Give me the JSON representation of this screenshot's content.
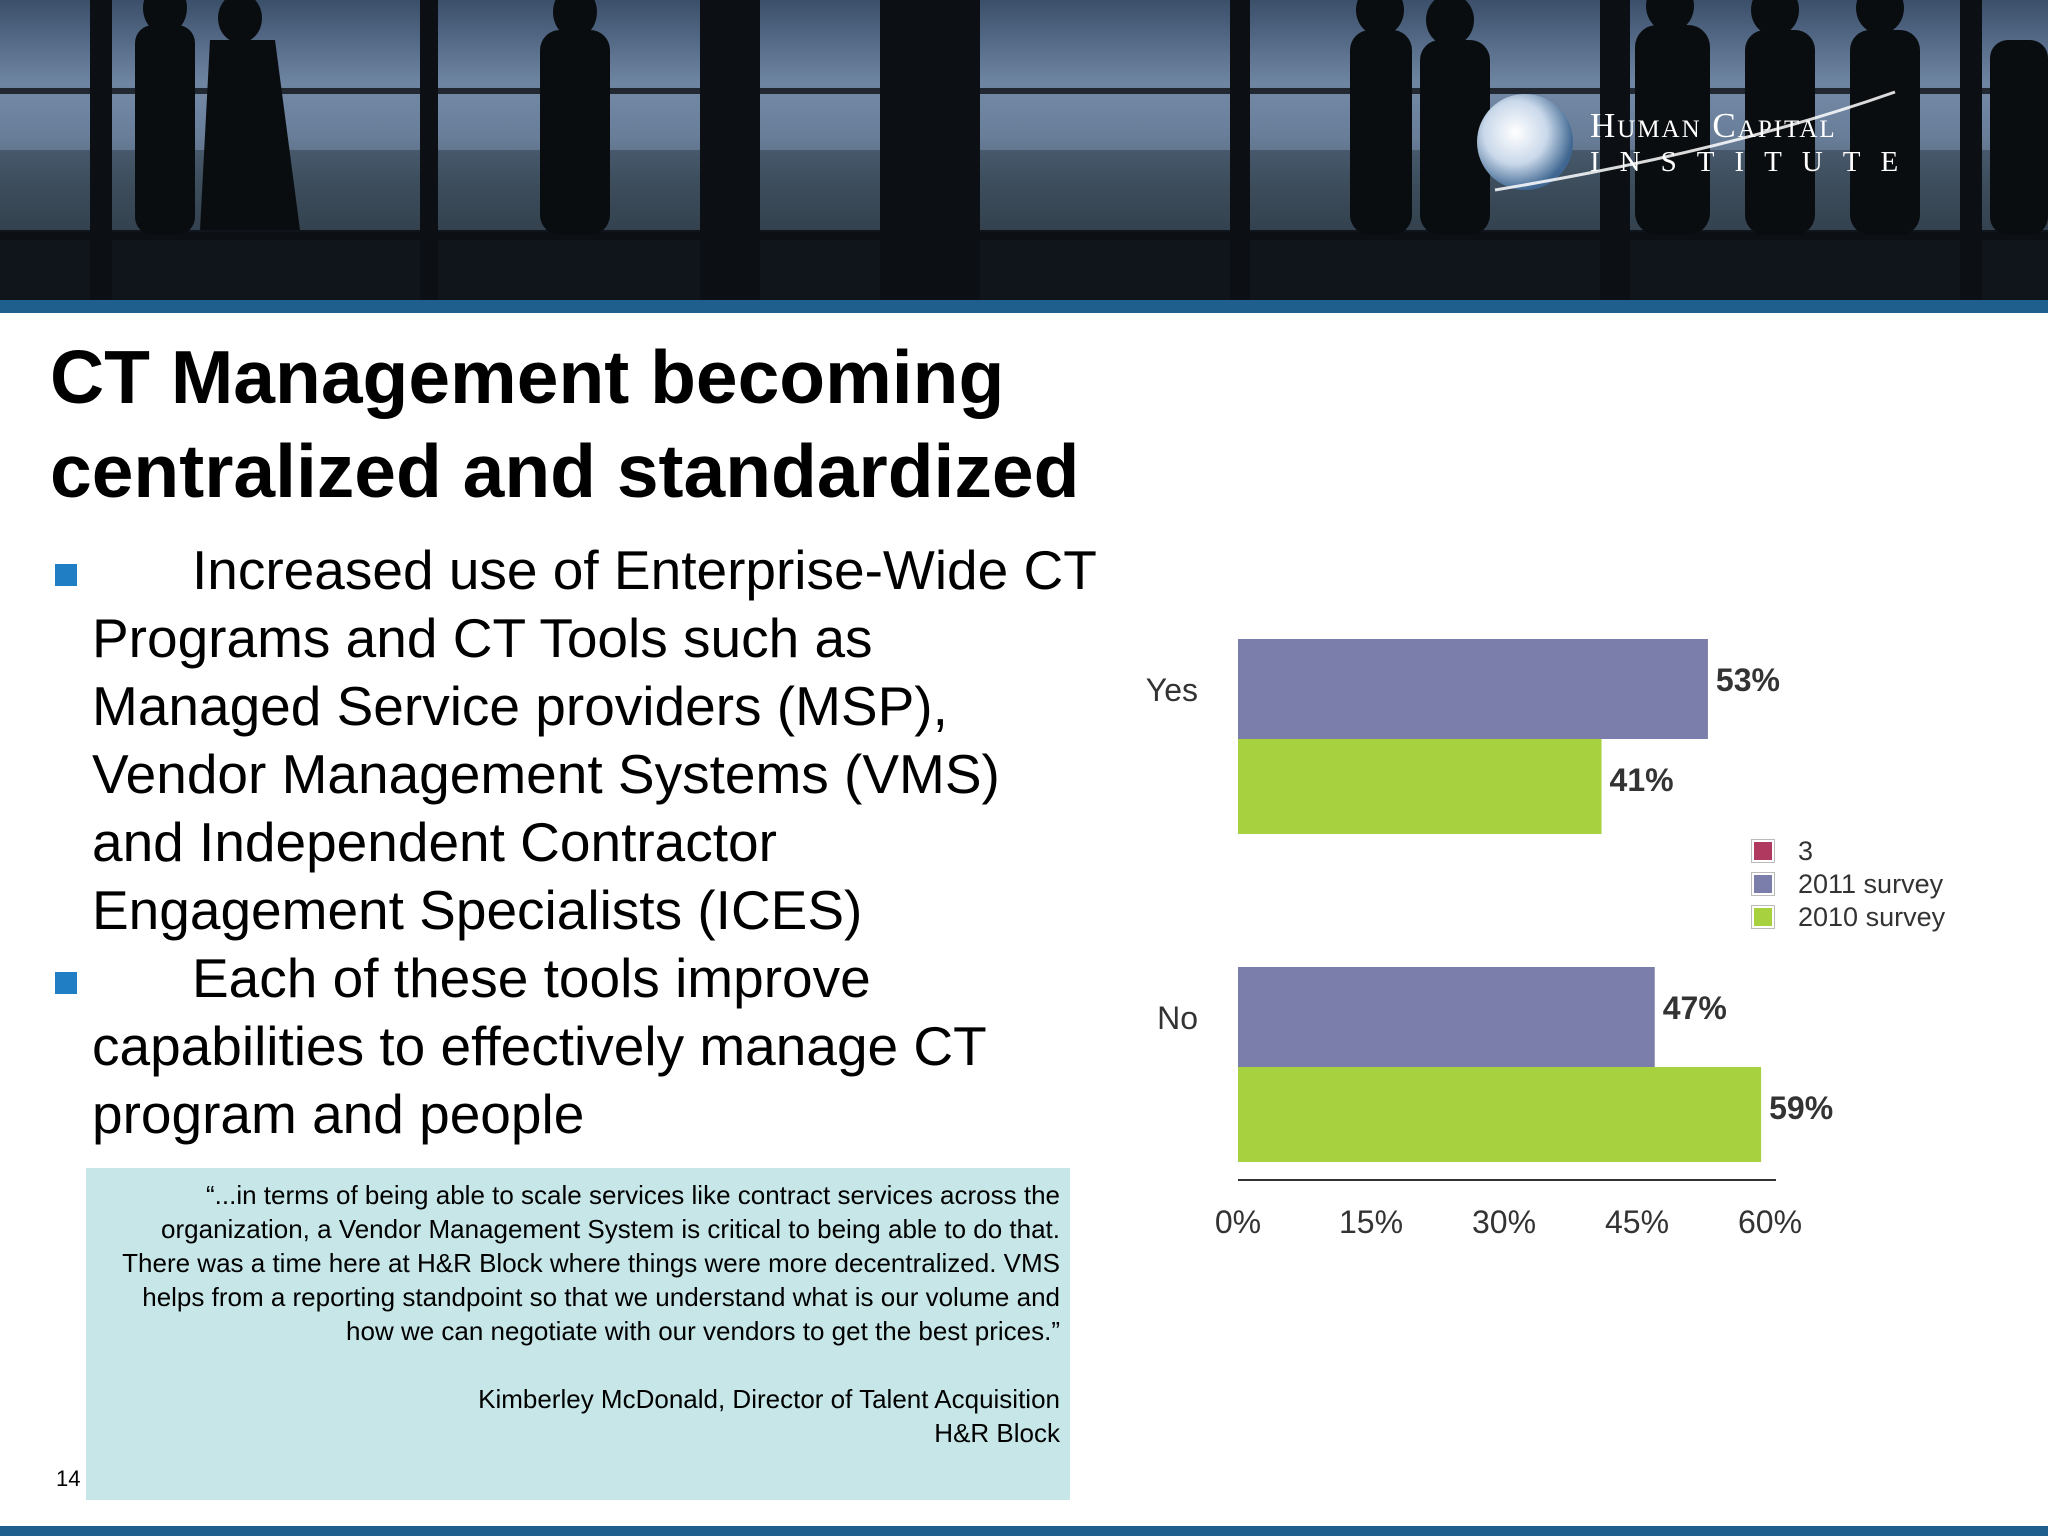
{
  "logo": {
    "line1": "Human Capital",
    "line2": "INSTITUTE"
  },
  "slide": {
    "title_line1": "CT Management becoming",
    "title_line2": "centralized and standardized",
    "bullets": [
      "Increased use of Enterprise-Wide CT Programs and CT Tools such as Managed Service providers (MSP), Vendor Management Systems (VMS) and Independent Contractor Engagement Specialists (ICES)",
      "Each of these tools improve capabilities to effectively manage CT program and people"
    ],
    "quote": "“...in terms of being able to scale services like contract services across the organization, a Vendor Management System is critical to being able to do that.  There was a time here at H&R Block where things were more decentralized.  VMS helps from a reporting standpoint so that we understand what is our volume and how we can negotiate with our vendors to get the best prices.”",
    "quote_author": "Kimberley McDonald, Director of Talent Acquisition",
    "quote_org": "H&R Block",
    "page_number": "14"
  },
  "colors": {
    "accent_bar": "#1f5f8e",
    "bullet": "#1f7ec4",
    "quote_bg": "#c6e6e8",
    "series_3": "#b03a5f",
    "series_2011": "#7b7eab",
    "series_2010": "#a8d13f"
  },
  "chart_data": {
    "type": "bar",
    "orientation": "horizontal",
    "categories": [
      "Yes",
      "No"
    ],
    "series": [
      {
        "name": "2011 survey",
        "values": [
          53,
          47
        ],
        "labels": [
          "53%",
          "47%"
        ]
      },
      {
        "name": "2010 survey",
        "values": [
          41,
          59
        ],
        "labels": [
          "41%",
          "59%"
        ]
      }
    ],
    "legend": [
      "3",
      "2011 survey",
      "2010 survey"
    ],
    "xlim": [
      0,
      60
    ],
    "xticks": [
      "0%",
      "15%",
      "30%",
      "45%",
      "60%"
    ],
    "grid": false,
    "legend_position": "right"
  }
}
